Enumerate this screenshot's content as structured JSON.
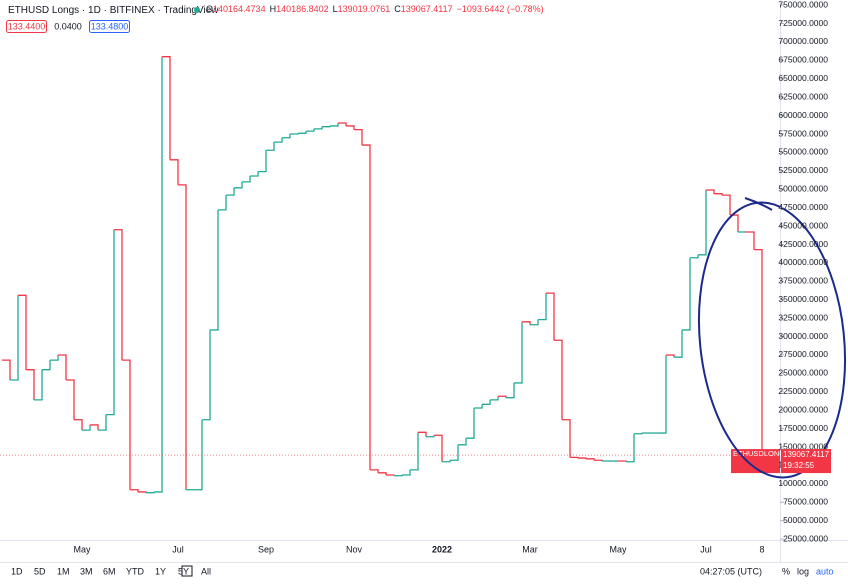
{
  "header": {
    "symbol": "ETHUSD Longs",
    "interval": "1D",
    "exchange": "BITFINEX",
    "source": "TradingView",
    "ohlc": [
      {
        "key": "O",
        "value": "140164.4734"
      },
      {
        "key": "H",
        "value": "140186.8402"
      },
      {
        "key": "L",
        "value": "139019.0761"
      },
      {
        "key": "C",
        "value": "139067.4117"
      }
    ],
    "change": "−1093.6442 (−0.78%)",
    "boxes": [
      "133.4400",
      "0.0400",
      "133.4800"
    ]
  },
  "chart_data": {
    "type": "line",
    "up_color": "#22ab94",
    "down_color": "#f23645",
    "categories": [
      null,
      null,
      null,
      null,
      null,
      null,
      null,
      null,
      null,
      null,
      "May",
      null,
      null,
      null,
      null,
      null,
      null,
      null,
      null,
      null,
      null,
      null,
      "Jul",
      null,
      null,
      null,
      null,
      null,
      null,
      null,
      null,
      null,
      null,
      "Sep",
      null,
      null,
      null,
      null,
      null,
      null,
      null,
      null,
      null,
      null,
      "Nov",
      null,
      null,
      null,
      null,
      null,
      null,
      null,
      null,
      null,
      null,
      "2022",
      null,
      null,
      null,
      null,
      null,
      null,
      null,
      null,
      null,
      null,
      "Mar",
      null,
      null,
      null,
      null,
      null,
      null,
      null,
      null,
      null,
      null,
      "May",
      null,
      null,
      null,
      null,
      null,
      null,
      null,
      null,
      null,
      null,
      "Jul",
      null,
      null,
      null,
      null,
      null,
      null,
      "8"
    ],
    "series": [
      {
        "name": "ETHUSDLONGS",
        "values": [
          268000,
          241000,
          356000,
          255000,
          214000,
          255000,
          268000,
          275000,
          241000,
          187000,
          173000,
          180000,
          173000,
          194000,
          445000,
          268000,
          92000,
          89000,
          88000,
          89000,
          680000,
          540000,
          506000,
          92000,
          92000,
          187000,
          309000,
          472000,
          492000,
          502000,
          510000,
          518000,
          524000,
          553000,
          564000,
          570000,
          575000,
          576000,
          579000,
          582000,
          585000,
          586000,
          590000,
          586000,
          581000,
          560000,
          119000,
          115000,
          112000,
          111000,
          112000,
          119000,
          170000,
          164000,
          166000,
          130000,
          132000,
          153000,
          162000,
          203000,
          208000,
          214000,
          219000,
          217000,
          237000,
          320000,
          316000,
          323000,
          359000,
          295000,
          187000,
          136000,
          135000,
          134000,
          132000,
          131000,
          131000,
          131000,
          130000,
          168000,
          169000,
          169000,
          169000,
          275000,
          272000,
          309000,
          407000,
          411000,
          499000,
          494000,
          492000,
          465000,
          442000,
          442000,
          418000,
          139067.4117
        ]
      }
    ],
    "last_label": {
      "value": "139067.4117",
      "time": "19:32:55"
    },
    "ylim": [
      0,
      757000
    ],
    "yticks": [
      {
        "value": 25000,
        "label": "25000.0000"
      },
      {
        "value": 50000,
        "label": "50000.0000"
      },
      {
        "value": 75000,
        "label": "75000.0000"
      },
      {
        "value": 100000,
        "label": "100000.0000"
      },
      {
        "value": 125000,
        "label": "125000.0000"
      },
      {
        "value": 150000,
        "label": "150000.0000"
      },
      {
        "value": 175000,
        "label": "175000.0000"
      },
      {
        "value": 200000,
        "label": "200000.0000"
      },
      {
        "value": 225000,
        "label": "225000.0000"
      },
      {
        "value": 250000,
        "label": "250000.0000"
      },
      {
        "value": 275000,
        "label": "275000.0000"
      },
      {
        "value": 300000,
        "label": "300000.0000"
      },
      {
        "value": 325000,
        "label": "325000.0000"
      },
      {
        "value": 350000,
        "label": "350000.0000"
      },
      {
        "value": 375000,
        "label": "375000.0000"
      },
      {
        "value": 400000,
        "label": "400000.0000"
      },
      {
        "value": 425000,
        "label": "425000.0000"
      },
      {
        "value": 450000,
        "label": "450000.0000"
      },
      {
        "value": 475000,
        "label": "475000.0000"
      },
      {
        "value": 500000,
        "label": "500000.0000"
      },
      {
        "value": 525000,
        "label": "525000.0000"
      },
      {
        "value": 550000,
        "label": "550000.0000"
      },
      {
        "value": 575000,
        "label": "575000.0000"
      },
      {
        "value": 600000,
        "label": "600000.0000"
      },
      {
        "value": 625000,
        "label": "625000.0000"
      },
      {
        "value": 650000,
        "label": "650000.0000"
      },
      {
        "value": 675000,
        "label": "675000.0000"
      },
      {
        "value": 700000,
        "label": "700000.0000"
      },
      {
        "value": 725000,
        "label": "725000.0000"
      },
      {
        "value": 750000,
        "label": "750000.0000"
      }
    ],
    "grid": false
  },
  "toolbar": {
    "ranges": [
      "1D",
      "5D",
      "1M",
      "3M",
      "6M",
      "YTD",
      "1Y",
      "5Y",
      "All"
    ],
    "time": "04:27:05 (UTC)",
    "options": [
      "%",
      "log",
      "auto"
    ]
  }
}
